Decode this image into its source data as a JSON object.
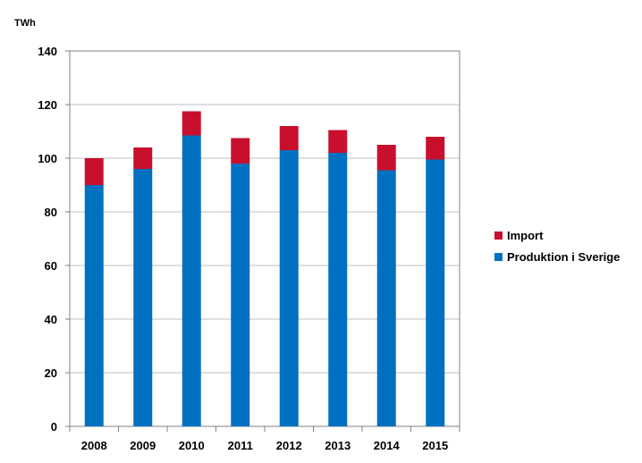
{
  "chart_data": {
    "type": "bar",
    "stacked": true,
    "ylabel": "TWh",
    "xlabel": "",
    "title": "",
    "ylim": [
      0,
      140
    ],
    "yticks": [
      0,
      20,
      40,
      60,
      80,
      100,
      120,
      140
    ],
    "categories": [
      "2008",
      "2009",
      "2010",
      "2011",
      "2012",
      "2013",
      "2014",
      "2015"
    ],
    "series": [
      {
        "name": "Produktion i Sverige",
        "color": "#0070C0",
        "values": [
          90,
          96,
          108.5,
          98,
          103,
          102,
          95.5,
          99.5
        ]
      },
      {
        "name": "Import",
        "color": "#C8102E",
        "values": [
          10,
          8,
          9,
          9.5,
          9,
          8.5,
          9.5,
          8.5
        ]
      }
    ],
    "grid": true,
    "legend_position": "right"
  }
}
